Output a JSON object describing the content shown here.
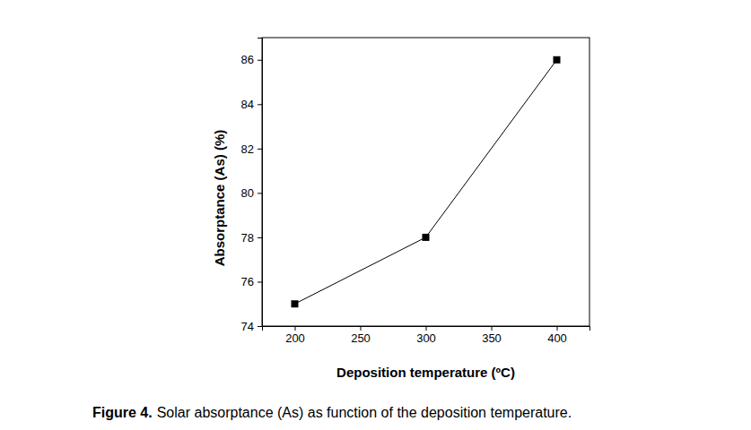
{
  "chart_data": {
    "type": "line",
    "x_label": "Deposition temperature (ºC)",
    "y_label": "Absorptance (As) (%)",
    "caption": [
      "Figure 4.",
      "Solar absorptance (As) as function of the deposition temperature."
    ],
    "x": [
      200,
      300,
      400
    ],
    "values": [
      75,
      78,
      86
    ],
    "color": "#000000",
    "marker": "square",
    "xlim": [
      175,
      425
    ],
    "xticks": [
      200,
      250,
      300,
      350,
      400
    ],
    "ylim": [
      74,
      87
    ],
    "yticks": [
      74,
      76,
      78,
      80,
      82,
      84,
      86
    ],
    "grid": false
  }
}
